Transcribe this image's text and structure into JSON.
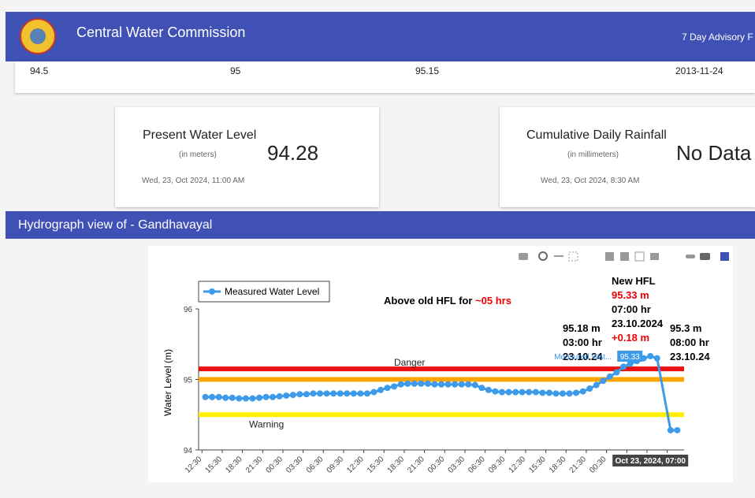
{
  "header": {
    "title": "Central Water Commission",
    "advisory": "7 Day Advisory F"
  },
  "table": {
    "rows": [
      [
        "94.5",
        "95",
        "95.15",
        "2013-11-24"
      ]
    ]
  },
  "cards": [
    {
      "title": "Present Water Level",
      "unit": "(in meters)",
      "value": "94.28",
      "date": "Wed, 23, Oct 2024, 11:00 AM"
    },
    {
      "title": "Cumulative Daily Rainfall",
      "unit": "(in millimeters)",
      "value": "No Data",
      "date": "Wed, 23, Oct 2024, 8:30 AM"
    }
  ],
  "section": {
    "title": "Hydrograph view of - Gandhavayal"
  },
  "chart_data": {
    "type": "line",
    "y_label": "Water Level (m)",
    "ylim": [
      94,
      96
    ],
    "yticks": [
      94,
      95,
      96
    ],
    "xlim": [
      "2024-10-20T12:00",
      "2024-10-23T12:00"
    ],
    "xticks": [
      {
        "value": "2024-10-20T12:30",
        "label": "12:30"
      },
      {
        "value": "2024-10-20T15:30",
        "label": "15:30"
      },
      {
        "value": "2024-10-20T18:30",
        "label": "18:30"
      },
      {
        "value": "2024-10-20T21:30",
        "label": "21:30"
      },
      {
        "value": "2024-10-21T00:30",
        "label": "00:30"
      },
      {
        "value": "2024-10-21T03:30",
        "label": "03:30"
      },
      {
        "value": "2024-10-21T06:30",
        "label": "06:30"
      },
      {
        "value": "2024-10-21T09:30",
        "label": "09:30"
      },
      {
        "value": "2024-10-21T12:30",
        "label": "12:30"
      },
      {
        "value": "2024-10-21T15:30",
        "label": "15:30"
      },
      {
        "value": "2024-10-21T18:30",
        "label": "18:30"
      },
      {
        "value": "2024-10-21T21:30",
        "label": "21:30"
      },
      {
        "value": "2024-10-22T00:30",
        "label": "00:30"
      },
      {
        "value": "2024-10-22T03:30",
        "label": "03:30"
      },
      {
        "value": "2024-10-22T06:30",
        "label": "06:30"
      },
      {
        "value": "2024-10-22T09:30",
        "label": "09:30"
      },
      {
        "value": "2024-10-22T12:30",
        "label": "12:30"
      },
      {
        "value": "2024-10-22T15:30",
        "label": "15:30"
      },
      {
        "value": "2024-10-22T18:30",
        "label": "18:30"
      },
      {
        "value": "2024-10-22T21:30",
        "label": "21:30"
      },
      {
        "value": "2024-10-23T00:30",
        "label": "00:30"
      },
      {
        "value": "2024-10-23T03:30",
        "label": "03:"
      },
      {
        "value": "2024-10-23T06:30",
        "label": "06:"
      },
      {
        "value": "2024-10-23T09:30",
        "label": "09:"
      }
    ],
    "thresholds": [
      {
        "name": "Danger",
        "value": 95.15,
        "color": "#e81010"
      },
      {
        "value": 95,
        "color": "#ffa500"
      },
      {
        "name": "Warning",
        "value": 94.5,
        "color": "#ffee00"
      }
    ],
    "series": [
      {
        "name": "Measured Water Level",
        "color": "#3d9be9",
        "x": [
          "2024-10-20T13:00",
          "2024-10-20T14:00",
          "2024-10-20T15:00",
          "2024-10-20T16:00",
          "2024-10-20T17:00",
          "2024-10-20T18:00",
          "2024-10-20T19:00",
          "2024-10-20T20:00",
          "2024-10-20T21:00",
          "2024-10-20T22:00",
          "2024-10-20T23:00",
          "2024-10-21T00:00",
          "2024-10-21T01:00",
          "2024-10-21T02:00",
          "2024-10-21T03:00",
          "2024-10-21T04:00",
          "2024-10-21T05:00",
          "2024-10-21T06:00",
          "2024-10-21T07:00",
          "2024-10-21T08:00",
          "2024-10-21T09:00",
          "2024-10-21T10:00",
          "2024-10-21T11:00",
          "2024-10-21T12:00",
          "2024-10-21T13:00",
          "2024-10-21T14:00",
          "2024-10-21T15:00",
          "2024-10-21T16:00",
          "2024-10-21T17:00",
          "2024-10-21T18:00",
          "2024-10-21T19:00",
          "2024-10-21T20:00",
          "2024-10-21T21:00",
          "2024-10-21T22:00",
          "2024-10-21T23:00",
          "2024-10-22T00:00",
          "2024-10-22T01:00",
          "2024-10-22T02:00",
          "2024-10-22T03:00",
          "2024-10-22T04:00",
          "2024-10-22T05:00",
          "2024-10-22T06:00",
          "2024-10-22T07:00",
          "2024-10-22T08:00",
          "2024-10-22T09:00",
          "2024-10-22T10:00",
          "2024-10-22T11:00",
          "2024-10-22T12:00",
          "2024-10-22T13:00",
          "2024-10-22T14:00",
          "2024-10-22T15:00",
          "2024-10-22T16:00",
          "2024-10-22T17:00",
          "2024-10-22T18:00",
          "2024-10-22T19:00",
          "2024-10-22T20:00",
          "2024-10-22T21:00",
          "2024-10-22T22:00",
          "2024-10-22T23:00",
          "2024-10-23T00:00",
          "2024-10-23T01:00",
          "2024-10-23T02:00",
          "2024-10-23T03:00",
          "2024-10-23T04:00",
          "2024-10-23T05:00",
          "2024-10-23T06:00",
          "2024-10-23T07:00",
          "2024-10-23T08:00",
          "2024-10-23T10:00",
          "2024-10-23T11:00"
        ],
        "values": [
          94.75,
          94.75,
          94.75,
          94.74,
          94.74,
          94.73,
          94.73,
          94.73,
          94.74,
          94.75,
          94.75,
          94.76,
          94.77,
          94.78,
          94.79,
          94.79,
          94.8,
          94.8,
          94.8,
          94.8,
          94.8,
          94.8,
          94.8,
          94.8,
          94.8,
          94.82,
          94.85,
          94.88,
          94.9,
          94.93,
          94.94,
          94.94,
          94.94,
          94.94,
          94.93,
          94.93,
          94.93,
          94.93,
          94.93,
          94.93,
          94.92,
          94.88,
          94.85,
          94.83,
          94.82,
          94.82,
          94.82,
          94.82,
          94.82,
          94.82,
          94.81,
          94.81,
          94.8,
          94.8,
          94.8,
          94.81,
          94.83,
          94.87,
          94.92,
          94.98,
          95.04,
          95.1,
          95.18,
          95.22,
          95.26,
          95.3,
          95.33,
          95.3,
          94.28,
          94.28
        ]
      }
    ],
    "annotations": {
      "above_hfl": {
        "text": "Above old HFL for ",
        "duration": "~05 hrs"
      },
      "new_hfl": [
        "New HFL",
        "95.33 m",
        "07:00 hr",
        "23.10.2024",
        "+0.18 m"
      ],
      "point_0300": [
        "95.18 m",
        "03:00 hr",
        "23.10.24"
      ],
      "point_0800": [
        "95.3 m",
        "08:00 hr",
        "23.10.24"
      ]
    },
    "hover": {
      "name": "Measured Wat...",
      "value_label": "95.33",
      "x_label": "Oct 23, 2024, 07:00"
    }
  }
}
